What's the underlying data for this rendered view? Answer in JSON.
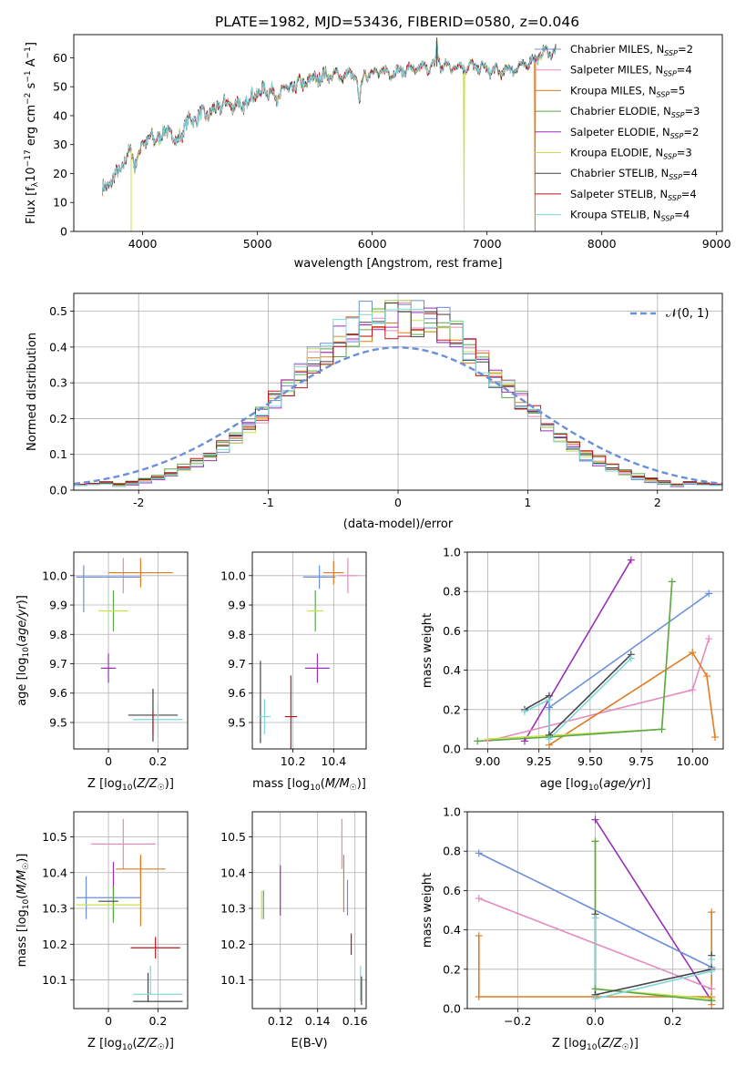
{
  "colors": {
    "chabrier_miles": "#6b8fd8",
    "salpeter_miles": "#e58ac0",
    "kroupa_miles": "#e07b22",
    "chabrier_elodie": "#5aa84a",
    "salpeter_elodie": "#9a2fb8",
    "kroupa_elodie": "#c8e04a",
    "chabrier_stelib": "#444444",
    "salpeter_stelib": "#c0161c",
    "kroupa_stelib": "#7fd6dc",
    "normal": "#6b8fd8"
  },
  "figure_title": "PLATE=1982, MJD=53436, FIBERID=0580, z=0.046",
  "chart_data": [
    {
      "id": "spectrum",
      "type": "line",
      "xlabel": "wavelength [Angstrom, rest frame]",
      "ylabel": "Flux [f_λ10^-17 erg cm^-2 s^-1 A^-1]",
      "xlim": [
        3400,
        9050
      ],
      "ylim": [
        0,
        68
      ],
      "xticks": [
        4000,
        5000,
        6000,
        7000,
        8000,
        9000
      ],
      "yticks": [
        0,
        10,
        20,
        30,
        40,
        50,
        60
      ],
      "legend_position": "top-right",
      "series": [
        {
          "name": "Chabrier MILES, N_SSP=2",
          "label_main": "Chabrier MILES, N",
          "label_sub": "SSP",
          "label_tail": "=2",
          "color_key": "chabrier_miles"
        },
        {
          "name": "Salpeter MILES, N_SSP=4",
          "label_main": "Salpeter MILES, N",
          "label_sub": "SSP",
          "label_tail": "=4",
          "color_key": "salpeter_miles"
        },
        {
          "name": "Kroupa MILES, N_SSP=5",
          "label_main": "Kroupa MILES, N",
          "label_sub": "SSP",
          "label_tail": "=5",
          "color_key": "kroupa_miles",
          "dropout": 7420
        },
        {
          "name": "Chabrier ELODIE, N_SSP=3",
          "label_main": "Chabrier ELODIE, N",
          "label_sub": "SSP",
          "label_tail": "=3",
          "color_key": "chabrier_elodie"
        },
        {
          "name": "Salpeter ELODIE, N_SSP=2",
          "label_main": "Salpeter ELODIE, N",
          "label_sub": "SSP",
          "label_tail": "=2",
          "color_key": "salpeter_elodie"
        },
        {
          "name": "Kroupa ELODIE, N_SSP=3",
          "label_main": "Kroupa ELODIE, N",
          "label_sub": "SSP",
          "label_tail": "=3",
          "color_key": "kroupa_elodie",
          "dropout": 6800
        },
        {
          "name": "Chabrier STELIB, N_SSP=4",
          "label_main": "Chabrier STELIB, N",
          "label_sub": "SSP",
          "label_tail": "=4",
          "color_key": "chabrier_stelib"
        },
        {
          "name": "Salpeter STELIB, N_SSP=4",
          "label_main": "Salpeter STELIB, N",
          "label_sub": "SSP",
          "label_tail": "=4",
          "color_key": "salpeter_stelib"
        },
        {
          "name": "Kroupa STELIB, N_SSP=4",
          "label_main": "Kroupa STELIB, N",
          "label_sub": "SSP",
          "label_tail": "=4",
          "color_key": "kroupa_stelib"
        }
      ],
      "continuum": [
        [
          3650,
          14
        ],
        [
          3720,
          17
        ],
        [
          3800,
          21
        ],
        [
          3900,
          28
        ],
        [
          4000,
          31
        ],
        [
          4100,
          33
        ],
        [
          4200,
          34
        ],
        [
          4300,
          35
        ],
        [
          4400,
          38
        ],
        [
          4500,
          40
        ],
        [
          4600,
          41
        ],
        [
          4700,
          44
        ],
        [
          4800,
          44
        ],
        [
          4900,
          45
        ],
        [
          5000,
          48
        ],
        [
          5100,
          49
        ],
        [
          5200,
          50
        ],
        [
          5300,
          50
        ],
        [
          5400,
          51
        ],
        [
          5500,
          53
        ],
        [
          5600,
          54
        ],
        [
          5700,
          54
        ],
        [
          5800,
          54
        ],
        [
          5900,
          54
        ],
        [
          6000,
          55
        ],
        [
          6100,
          55
        ],
        [
          6200,
          55
        ],
        [
          6300,
          56
        ],
        [
          6400,
          56
        ],
        [
          6500,
          57
        ],
        [
          6600,
          57
        ],
        [
          6700,
          57
        ],
        [
          6800,
          57
        ],
        [
          6900,
          57
        ],
        [
          7000,
          56
        ],
        [
          7100,
          55
        ],
        [
          7200,
          56
        ],
        [
          7300,
          57
        ],
        [
          7400,
          59
        ],
        [
          7500,
          62
        ],
        [
          7600,
          62
        ]
      ],
      "features": [
        [
          3934,
          -6,
          12
        ],
        [
          3968,
          -5,
          10
        ],
        [
          4101,
          -3,
          10
        ],
        [
          4300,
          -5,
          18
        ],
        [
          4340,
          -3,
          8
        ],
        [
          4861,
          -4,
          10
        ],
        [
          5175,
          -5,
          18
        ],
        [
          5270,
          -3,
          12
        ],
        [
          5890,
          -9,
          14
        ],
        [
          6563,
          9,
          6
        ],
        [
          6583,
          4,
          5
        ]
      ],
      "spikes": [
        {
          "x": 3900,
          "y": 0,
          "color_key": "kroupa_elodie"
        },
        {
          "x": 6563,
          "y": 67,
          "color_key": "chabrier_stelib"
        }
      ]
    },
    {
      "id": "residuals",
      "type": "step",
      "xlabel": "(data-model)/error",
      "ylabel": "Normed distribution",
      "xlim": [
        -2.5,
        2.5
      ],
      "ylim": [
        0,
        0.55
      ],
      "xticks": [
        -2,
        -1,
        0,
        1,
        2
      ],
      "yticks": [
        0.0,
        0.1,
        0.2,
        0.3,
        0.4,
        0.5
      ],
      "legend_position": "top-right",
      "grid": true,
      "reference_label": "𝒩(0, 1)",
      "bin_width": 0.1
    },
    {
      "id": "age_vs_Z",
      "type": "errorbar",
      "xlabel": "Z [log10(Z/Z☉)]",
      "ylabel": "age  [log10(age/yr)]",
      "xlim": [
        -0.14,
        0.32
      ],
      "ylim": [
        9.41,
        10.08
      ],
      "xticks": [
        0.0,
        0.2
      ],
      "yticks": [
        9.5,
        9.6,
        9.7,
        9.8,
        9.9,
        10.0
      ],
      "grid": true,
      "points": [
        {
          "color_key": "chabrier_miles",
          "x": -0.1,
          "xerr": 0.0,
          "y": 9.955,
          "yerr": 0.08
        },
        {
          "color_key": "salpeter_miles",
          "x": 0.06,
          "xerr": 0.0,
          "y": 10.0,
          "yerr": 0.06
        },
        {
          "color_key": "kroupa_miles",
          "x": 0.13,
          "xerr": 0.13,
          "y": 10.01,
          "yerr": 0.05
        },
        {
          "color_key": "chabrier_miles",
          "x": 0.0,
          "xerr": 0.13,
          "y": 9.995,
          "yerr": 0.0
        },
        {
          "color_key": "chabrier_elodie",
          "x": 0.02,
          "xerr": 0.0,
          "y": 9.88,
          "yerr": 0.07
        },
        {
          "color_key": "kroupa_elodie",
          "x": 0.02,
          "xerr": 0.06,
          "y": 9.88,
          "yerr": 0.0
        },
        {
          "color_key": "salpeter_elodie",
          "x": 0.0,
          "xerr": 0.03,
          "y": 9.685,
          "yerr": 0.05
        },
        {
          "color_key": "chabrier_stelib",
          "x": 0.18,
          "xerr": 0.1,
          "y": 9.525,
          "yerr": 0.09
        },
        {
          "color_key": "kroupa_stelib",
          "x": 0.2,
          "xerr": 0.1,
          "y": 9.51,
          "yerr": 0.06
        },
        {
          "color_key": "salpeter_stelib",
          "x": 0.18,
          "xerr": 0.0,
          "y": 9.5,
          "yerr": 0.04
        }
      ]
    },
    {
      "id": "age_vs_mass",
      "type": "errorbar",
      "xlabel": "mass [log10(M/M☉)]",
      "ylabel": "",
      "xlim": [
        10.0,
        10.56
      ],
      "ylim": [
        9.41,
        10.08
      ],
      "xticks": [
        10.2,
        10.4
      ],
      "yticks": [
        9.5,
        9.6,
        9.7,
        9.8,
        9.9,
        10.0
      ],
      "grid": true,
      "points": [
        {
          "color_key": "chabrier_miles",
          "x": 10.33,
          "xerr": 0.08,
          "y": 9.995,
          "yerr": 0.04
        },
        {
          "color_key": "kroupa_miles",
          "x": 10.4,
          "xerr": 0.05,
          "y": 10.01,
          "yerr": 0.04
        },
        {
          "color_key": "salpeter_miles",
          "x": 10.47,
          "xerr": 0.05,
          "y": 10.0,
          "yerr": 0.06
        },
        {
          "color_key": "chabrier_elodie",
          "x": 10.31,
          "xerr": 0.0,
          "y": 9.88,
          "yerr": 0.07
        },
        {
          "color_key": "kroupa_elodie",
          "x": 10.31,
          "xerr": 0.04,
          "y": 9.88,
          "yerr": 0.0
        },
        {
          "color_key": "salpeter_elodie",
          "x": 10.32,
          "xerr": 0.06,
          "y": 9.685,
          "yerr": 0.05
        },
        {
          "color_key": "chabrier_stelib",
          "x": 10.04,
          "xerr": 0.0,
          "y": 9.57,
          "yerr": 0.14
        },
        {
          "color_key": "kroupa_stelib",
          "x": 10.06,
          "xerr": 0.03,
          "y": 9.52,
          "yerr": 0.06
        },
        {
          "color_key": "salpeter_stelib",
          "x": 10.19,
          "xerr": 0.03,
          "y": 9.52,
          "yerr": 0.14
        }
      ]
    },
    {
      "id": "weight_vs_age",
      "type": "line",
      "xlabel": "age  [log10(age/yr)]",
      "ylabel": "mass weight",
      "xlim": [
        8.9,
        10.15
      ],
      "ylim": [
        0.0,
        1.0
      ],
      "xticks": [
        9.0,
        9.25,
        9.5,
        9.75,
        10.0
      ],
      "xtick_labels": [
        "9.00",
        "9.25",
        "9.50",
        "9.75",
        "10.00"
      ],
      "yticks": [
        0.0,
        0.2,
        0.4,
        0.6,
        0.8,
        1.0
      ],
      "grid": true,
      "series": [
        {
          "color_key": "salpeter_elodie",
          "x": [
            9.18,
            9.7
          ],
          "y": [
            0.04,
            0.96
          ]
        },
        {
          "color_key": "chabrier_miles",
          "x": [
            9.3,
            10.08
          ],
          "y": [
            0.21,
            0.79
          ]
        },
        {
          "color_key": "salpeter_miles",
          "x": [
            9.0,
            10.0,
            10.08
          ],
          "y": [
            0.04,
            0.3,
            0.56
          ]
        },
        {
          "color_key": "kroupa_miles",
          "x": [
            9.3,
            10.0,
            10.07,
            10.11
          ],
          "y": [
            0.02,
            0.49,
            0.37,
            0.06
          ]
        },
        {
          "color_key": "kroupa_elodie",
          "x": [
            9.0,
            9.85,
            9.9
          ],
          "y": [
            0.05,
            0.1,
            0.85
          ]
        },
        {
          "color_key": "chabrier_elodie",
          "x": [
            8.95,
            9.3,
            9.85,
            9.9
          ],
          "y": [
            0.04,
            0.06,
            0.1,
            0.85
          ]
        },
        {
          "color_key": "chabrier_stelib",
          "x": [
            9.18,
            9.3,
            9.3,
            9.7
          ],
          "y": [
            0.2,
            0.27,
            0.07,
            0.48
          ]
        },
        {
          "color_key": "kroupa_stelib",
          "x": [
            9.18,
            9.3,
            9.3,
            9.7
          ],
          "y": [
            0.19,
            0.25,
            0.05,
            0.46
          ]
        }
      ]
    },
    {
      "id": "mass_vs_Z",
      "type": "errorbar",
      "xlabel": "Z [log10(Z/Z☉)]",
      "ylabel": "mass [log10(M/M☉)]",
      "xlim": [
        -0.14,
        0.32
      ],
      "ylim": [
        10.02,
        10.57
      ],
      "xticks": [
        0.0,
        0.2
      ],
      "yticks": [
        10.1,
        10.2,
        10.3,
        10.4,
        10.5
      ],
      "grid": true,
      "points": [
        {
          "color_key": "salpeter_miles",
          "x": 0.06,
          "xerr": 0.13,
          "y": 10.48,
          "yerr": 0.07
        },
        {
          "color_key": "kroupa_miles",
          "x": 0.13,
          "xerr": 0.1,
          "y": 10.41,
          "yerr": 0.03
        },
        {
          "color_key": "kroupa_miles",
          "x": 0.13,
          "xerr": 0.0,
          "y": 10.35,
          "yerr": 0.1
        },
        {
          "color_key": "chabrier_miles",
          "x": -0.09,
          "xerr": 0.0,
          "y": 10.33,
          "yerr": 0.06
        },
        {
          "color_key": "chabrier_miles",
          "x": 0.0,
          "xerr": 0.13,
          "y": 10.33,
          "yerr": 0.0
        },
        {
          "color_key": "salpeter_elodie",
          "x": 0.02,
          "xerr": 0.0,
          "y": 10.35,
          "yerr": 0.08
        },
        {
          "color_key": "chabrier_elodie",
          "x": 0.02,
          "xerr": 0.0,
          "y": 10.31,
          "yerr": 0.05
        },
        {
          "color_key": "kroupa_elodie",
          "x": 0.0,
          "xerr": 0.13,
          "y": 10.31,
          "yerr": 0.0
        },
        {
          "color_key": "chabrier_stelib",
          "x": 0.0,
          "xerr": 0.04,
          "y": 10.32,
          "yerr": 0.0
        },
        {
          "color_key": "salpeter_stelib",
          "x": 0.19,
          "xerr": 0.1,
          "y": 10.19,
          "yerr": 0.03
        },
        {
          "color_key": "chabrier_stelib",
          "x": 0.16,
          "xerr": 0.0,
          "y": 10.08,
          "yerr": 0.04
        },
        {
          "color_key": "kroupa_stelib",
          "x": 0.2,
          "xerr": 0.1,
          "y": 10.06,
          "yerr": 0.0
        },
        {
          "color_key": "kroupa_stelib",
          "x": 0.17,
          "xerr": 0.0,
          "y": 10.1,
          "yerr": 0.04
        },
        {
          "color_key": "chabrier_stelib",
          "x": 0.2,
          "xerr": 0.1,
          "y": 10.04,
          "yerr": 0.0
        }
      ]
    },
    {
      "id": "mass_vs_ebv",
      "type": "errorbar",
      "xlabel": "E(B-V)",
      "ylabel": "",
      "xlim": [
        0.105,
        0.166
      ],
      "ylim": [
        10.02,
        10.57
      ],
      "xticks": [
        0.12,
        0.14,
        0.16
      ],
      "yticks": [
        10.1,
        10.2,
        10.3,
        10.4,
        10.5
      ],
      "grid": true,
      "points": [
        {
          "color_key": "kroupa_elodie",
          "x": 0.11,
          "xerr": 0.0,
          "y": 10.31,
          "yerr": 0.04
        },
        {
          "color_key": "chabrier_elodie",
          "x": 0.111,
          "xerr": 0.0,
          "y": 10.31,
          "yerr": 0.04
        },
        {
          "color_key": "salpeter_elodie",
          "x": 0.12,
          "xerr": 0.0,
          "y": 10.35,
          "yerr": 0.07
        },
        {
          "color_key": "salpeter_miles",
          "x": 0.153,
          "xerr": 0.0,
          "y": 10.48,
          "yerr": 0.07
        },
        {
          "color_key": "kroupa_miles",
          "x": 0.154,
          "xerr": 0.0,
          "y": 10.37,
          "yerr": 0.08
        },
        {
          "color_key": "chabrier_miles",
          "x": 0.156,
          "xerr": 0.0,
          "y": 10.33,
          "yerr": 0.05
        },
        {
          "color_key": "salpeter_stelib",
          "x": 0.158,
          "xerr": 0.0,
          "y": 10.2,
          "yerr": 0.03
        },
        {
          "color_key": "kroupa_stelib",
          "x": 0.163,
          "xerr": 0.0,
          "y": 10.09,
          "yerr": 0.05
        },
        {
          "color_key": "chabrier_stelib",
          "x": 0.1635,
          "xerr": 0.0,
          "y": 10.07,
          "yerr": 0.04
        }
      ]
    },
    {
      "id": "weight_vs_Z",
      "type": "line",
      "xlabel": "Z [log10(Z/Z☉)]",
      "ylabel": "mass weight",
      "xlim": [
        -0.33,
        0.33
      ],
      "ylim": [
        0.0,
        1.0
      ],
      "xticks": [
        -0.2,
        0.0,
        0.2
      ],
      "xtick_labels": [
        "−0.2",
        "0.0",
        "0.2"
      ],
      "yticks": [
        0.0,
        0.2,
        0.4,
        0.6,
        0.8,
        1.0
      ],
      "grid": true,
      "series": [
        {
          "color_key": "salpeter_elodie",
          "x": [
            0.0,
            0.3
          ],
          "y": [
            0.96,
            0.04
          ]
        },
        {
          "color_key": "chabrier_miles",
          "x": [
            -0.3,
            0.3
          ],
          "y": [
            0.79,
            0.21
          ]
        },
        {
          "color_key": "salpeter_miles",
          "x": [
            -0.3,
            0.3
          ],
          "y": [
            0.56,
            0.1
          ]
        },
        {
          "color_key": "kroupa_miles",
          "x": [
            -0.3,
            -0.3,
            0.3,
            0.3,
            0.3
          ],
          "y": [
            0.37,
            0.06,
            0.06,
            0.02,
            0.49
          ]
        },
        {
          "color_key": "kroupa_elodie",
          "x": [
            0.0,
            0.0,
            0.3
          ],
          "y": [
            0.85,
            0.1,
            0.05
          ]
        },
        {
          "color_key": "chabrier_elodie",
          "x": [
            0.0,
            0.0,
            0.3
          ],
          "y": [
            0.85,
            0.1,
            0.04
          ]
        },
        {
          "color_key": "chabrier_stelib",
          "x": [
            0.0,
            0.0,
            0.3,
            0.3
          ],
          "y": [
            0.48,
            0.07,
            0.2,
            0.27
          ]
        },
        {
          "color_key": "kroupa_stelib",
          "x": [
            0.0,
            0.0,
            0.3,
            0.3
          ],
          "y": [
            0.46,
            0.05,
            0.19,
            0.25
          ]
        }
      ]
    }
  ]
}
